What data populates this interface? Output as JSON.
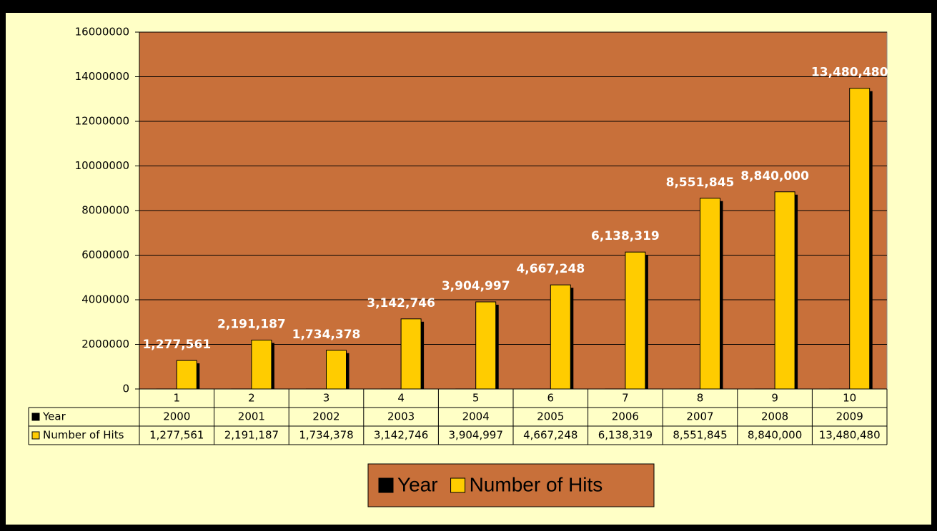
{
  "chart_data": {
    "type": "bar",
    "categories": [
      1,
      2,
      3,
      4,
      5,
      6,
      7,
      8,
      9,
      10
    ],
    "series": [
      {
        "name": "Year",
        "color": "#000000",
        "values": [
          2000,
          2001,
          2002,
          2003,
          2004,
          2005,
          2006,
          2007,
          2008,
          2009
        ]
      },
      {
        "name": "Number of Hits",
        "color": "#FFCC00",
        "values": [
          1277561,
          2191187,
          1734378,
          3142746,
          3904997,
          4667248,
          6138319,
          8551845,
          8840000,
          13480480
        ],
        "value_labels": [
          "1,277,561",
          "2,191,187",
          "1,734,378",
          "3,142,746",
          "3,904,997",
          "4,667,248",
          "6,138,319",
          "8,551,845",
          "8,840,000",
          "13,480,480"
        ]
      }
    ],
    "ylim": [
      0,
      16000000
    ],
    "yticks": [
      0,
      2000000,
      4000000,
      6000000,
      8000000,
      10000000,
      12000000,
      14000000,
      16000000
    ],
    "grid": true
  }
}
